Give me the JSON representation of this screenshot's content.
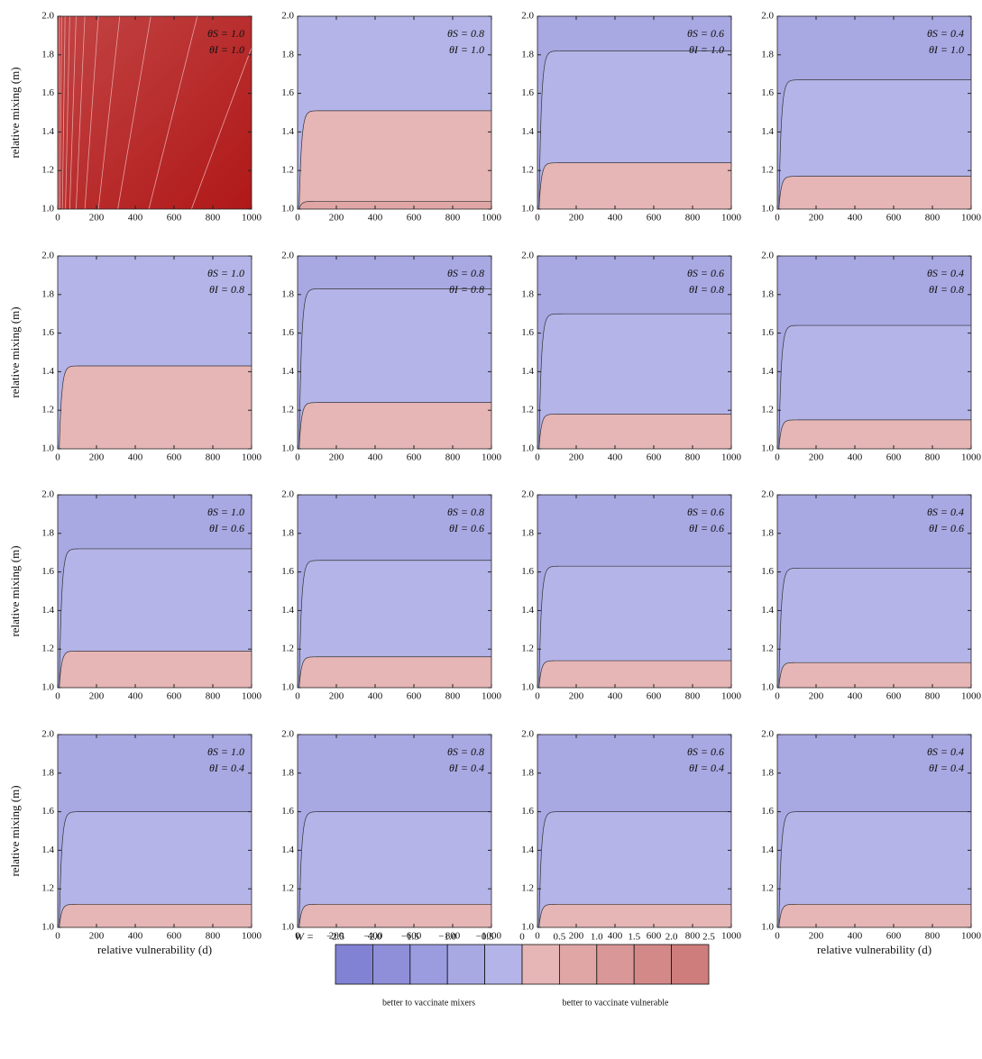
{
  "chart_data": {
    "type": "contour-grid",
    "xlabel": "relative vulnerability (d)",
    "ylabel": "relative mixing (m)",
    "xlim": [
      0,
      1000
    ],
    "ylim": [
      1.0,
      2.0
    ],
    "xticks": [
      0,
      200,
      400,
      600,
      800,
      1000
    ],
    "yticks": [
      {
        "value": 1.0,
        "label": "1.0"
      },
      {
        "value": 1.2,
        "label": "1.2"
      },
      {
        "value": 1.4,
        "label": "1.4"
      },
      {
        "value": 1.6,
        "label": "1.6"
      },
      {
        "value": 1.8,
        "label": "1.8"
      },
      {
        "value": 2.0,
        "label": "2.0"
      }
    ],
    "colorbar": {
      "title": "W =",
      "levels": [
        {
          "value": -2.5,
          "label": "−2.5"
        },
        {
          "value": -2.0,
          "label": "−2.0"
        },
        {
          "value": -1.5,
          "label": "−1.5"
        },
        {
          "value": -1.0,
          "label": "−1.0"
        },
        {
          "value": -0.5,
          "label": "−0.5"
        },
        0,
        0.5,
        {
          "value": 1.0,
          "label": "1.0"
        },
        1.5,
        {
          "value": 2.0,
          "label": "2.0"
        },
        2.5
      ],
      "colors": [
        "#8282d4",
        "#8e8ed9",
        "#9b9bdf",
        "#a8a8e3",
        "#b4b4e8",
        "#e6b5b5",
        "#e0a6a6",
        "#da9797",
        "#d48989",
        "#cf7c7c"
      ],
      "captions": [
        "better to vaccinate mixers",
        "better to vaccinate vulnerable"
      ]
    },
    "panels": [
      {
        "annotation": [
          "θS = 1.0",
          "θI = 1.0"
        ],
        "fill": [
          "#c24444",
          "#b01818"
        ],
        "lines": [
          [
            4,
            8
          ],
          [
            12,
            20
          ],
          [
            24,
            38
          ],
          [
            40,
            62
          ],
          [
            62,
            95
          ],
          [
            95,
            140
          ],
          [
            140,
            210
          ],
          [
            210,
            320
          ],
          [
            310,
            480
          ],
          [
            470,
            720
          ],
          [
            690,
            1060
          ]
        ]
      },
      {
        "annotation": [
          "θS = 0.8",
          "θI = 1.0"
        ],
        "contours": [
          {
            "level": 0.5,
            "m": 1.04
          },
          {
            "level": 0,
            "m": 1.51
          }
        ]
      },
      {
        "annotation": [
          "θS = 0.6",
          "θI = 1.0"
        ],
        "contours": [
          {
            "level": 0,
            "m": 1.24
          },
          {
            "level": -0.5,
            "m": 1.82
          }
        ]
      },
      {
        "annotation": [
          "θS = 0.4",
          "θI = 1.0"
        ],
        "contours": [
          {
            "level": 0,
            "m": 1.17
          },
          {
            "level": -0.5,
            "m": 1.67
          }
        ]
      },
      {
        "annotation": [
          "θS = 1.0",
          "θI = 0.8"
        ],
        "contours": [
          {
            "level": 0,
            "m": 1.43
          }
        ]
      },
      {
        "annotation": [
          "θS = 0.8",
          "θI = 0.8"
        ],
        "contours": [
          {
            "level": 0,
            "m": 1.24
          },
          {
            "level": -0.5,
            "m": 1.83
          }
        ]
      },
      {
        "annotation": [
          "θS = 0.6",
          "θI = 0.8"
        ],
        "contours": [
          {
            "level": 0,
            "m": 1.18
          },
          {
            "level": -0.5,
            "m": 1.7
          }
        ]
      },
      {
        "annotation": [
          "θS = 0.4",
          "θI = 0.8"
        ],
        "contours": [
          {
            "level": 0,
            "m": 1.15
          },
          {
            "level": -0.5,
            "m": 1.64
          }
        ]
      },
      {
        "annotation": [
          "θS = 1.0",
          "θI = 0.6"
        ],
        "contours": [
          {
            "level": 0,
            "m": 1.19
          },
          {
            "level": -0.5,
            "m": 1.72
          }
        ]
      },
      {
        "annotation": [
          "θS = 0.8",
          "θI = 0.6"
        ],
        "contours": [
          {
            "level": 0,
            "m": 1.16
          },
          {
            "level": -0.5,
            "m": 1.66
          }
        ]
      },
      {
        "annotation": [
          "θS = 0.6",
          "θI = 0.6"
        ],
        "contours": [
          {
            "level": 0,
            "m": 1.14
          },
          {
            "level": -0.5,
            "m": 1.63
          }
        ]
      },
      {
        "annotation": [
          "θS = 0.4",
          "θI = 0.6"
        ],
        "contours": [
          {
            "level": 0,
            "m": 1.13
          },
          {
            "level": -0.5,
            "m": 1.62
          }
        ]
      },
      {
        "annotation": [
          "θS = 1.0",
          "θI = 0.4"
        ],
        "contours": [
          {
            "level": 0,
            "m": 1.12
          },
          {
            "level": -0.5,
            "m": 1.6
          }
        ]
      },
      {
        "annotation": [
          "θS = 0.8",
          "θI = 0.4"
        ],
        "contours": [
          {
            "level": 0,
            "m": 1.12
          },
          {
            "level": -0.5,
            "m": 1.6
          }
        ]
      },
      {
        "annotation": [
          "θS = 0.6",
          "θI = 0.4"
        ],
        "contours": [
          {
            "level": 0,
            "m": 1.12
          },
          {
            "level": -0.5,
            "m": 1.6
          }
        ]
      },
      {
        "annotation": [
          "θS = 0.4",
          "θI = 0.4"
        ],
        "contours": [
          {
            "level": 0,
            "m": 1.12
          },
          {
            "level": -0.5,
            "m": 1.6
          }
        ]
      }
    ]
  }
}
